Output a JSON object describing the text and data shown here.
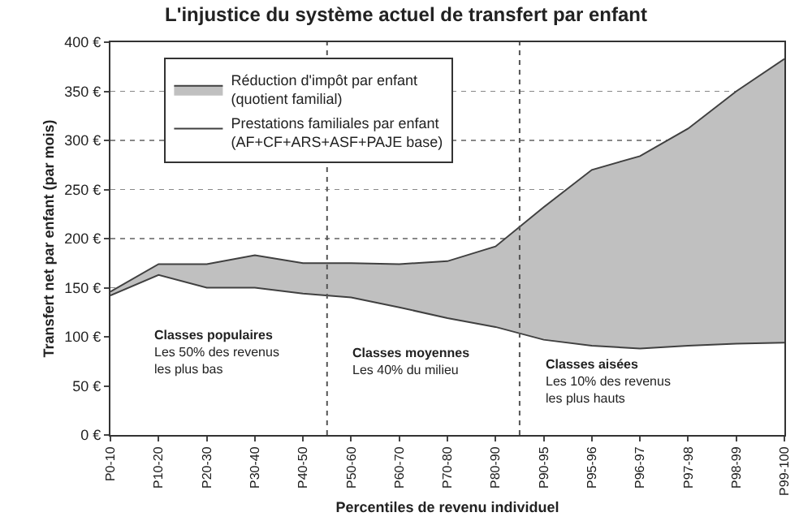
{
  "chart_data": {
    "type": "area",
    "title": "L'injustice du système actuel de transfert par enfant",
    "xlabel": "Percentiles de revenu individuel",
    "ylabel": "Transfert net par enfant (par mois)",
    "categories": [
      "P0-10",
      "P10-20",
      "P20-30",
      "P30-40",
      "P40-50",
      "P50-60",
      "P60-70",
      "P70-80",
      "P80-90",
      "P90-95",
      "P95-96",
      "P96-97",
      "P97-98",
      "P98-99",
      "P99-100"
    ],
    "stacked": true,
    "series": [
      {
        "name": "Prestations familiales par enfant\n(AF+CF+ARS+ASF+PAJE base)",
        "color": "#ffffff",
        "values": [
          142,
          163,
          150,
          150,
          144,
          140,
          130,
          119,
          110,
          97,
          91,
          88,
          91,
          93,
          94
        ]
      },
      {
        "name": "Réduction d'impôt par enfant\n(quotient familial)",
        "color": "#c0c0c0",
        "values": [
          4,
          11,
          24,
          33,
          31,
          35,
          44,
          58,
          82,
          135,
          179,
          196,
          221,
          257,
          289
        ]
      }
    ],
    "ylim": [
      0,
      400
    ],
    "yticks": [
      {
        "value": 0,
        "label": "0 €"
      },
      {
        "value": 50,
        "label": "50 €"
      },
      {
        "value": 100,
        "label": "100 €"
      },
      {
        "value": 150,
        "label": "150 €"
      },
      {
        "value": 200,
        "label": "200 €"
      },
      {
        "value": 250,
        "label": "250 €"
      },
      {
        "value": 300,
        "label": "300 €"
      },
      {
        "value": 350,
        "label": "350 €"
      },
      {
        "value": 400,
        "label": "400 €"
      }
    ],
    "grid": "y",
    "legend": "top left",
    "annotations": [
      "Classes populaires\nLes 50% des revenus\nles plus bas",
      "Classes moyennes\nLes 40% du milieu",
      "Classes aisées\nLes 10% des revenus\nles plus hauts"
    ]
  }
}
